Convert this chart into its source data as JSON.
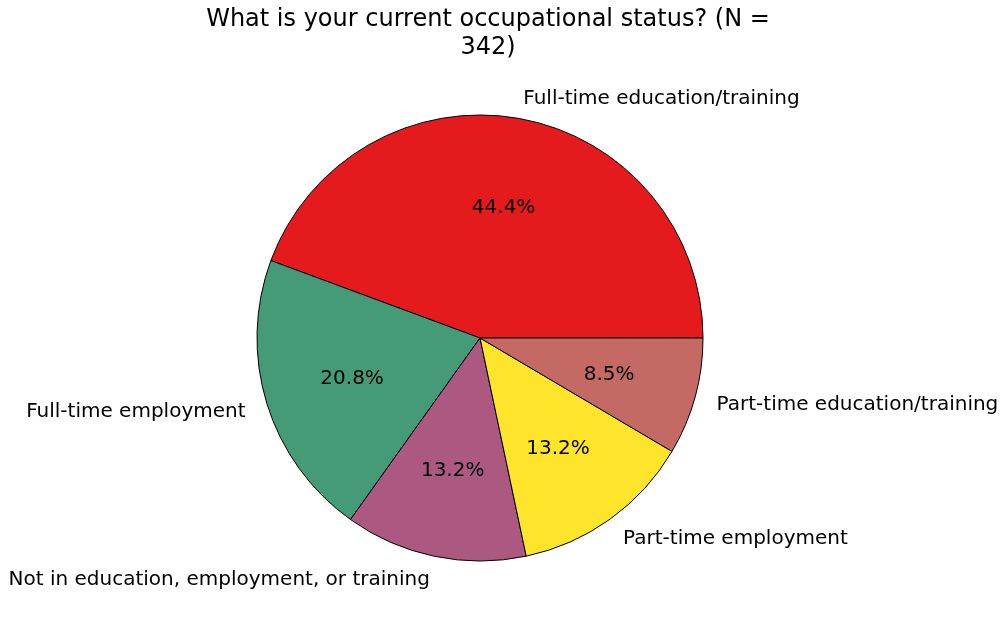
{
  "chart_data": {
    "type": "pie",
    "title": "What is your current occupational status? (N = 342)",
    "categories": [
      "Full-time education/training",
      "Full-time employment",
      "Not in education, employment, or training",
      "Part-time employment",
      "Part-time education/training"
    ],
    "values": [
      44.4,
      20.8,
      13.2,
      13.2,
      8.5
    ],
    "colors": [
      "#e41a1c",
      "#459b77",
      "#ab5981",
      "#fee42a",
      "#c56965"
    ],
    "value_labels": [
      "44.4%",
      "20.8%",
      "13.2%",
      "13.2%",
      "8.5%"
    ]
  }
}
